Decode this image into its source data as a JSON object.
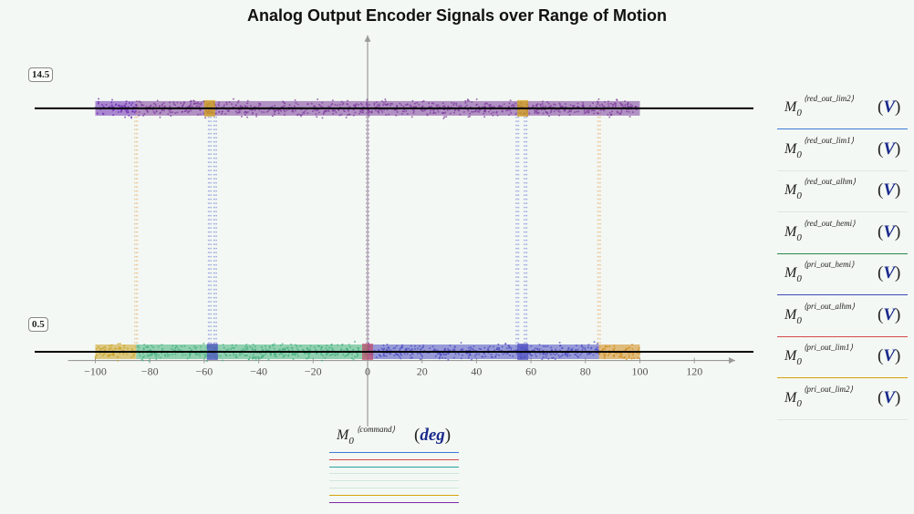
{
  "chart_data": {
    "type": "scatter",
    "title": "Analog Output Encoder Signals over Range of Motion",
    "xlim": [
      -110,
      135
    ],
    "ylim": [
      -3.8,
      18.7
    ],
    "xticks": [
      -100,
      -80,
      -60,
      -40,
      -20,
      0,
      20,
      40,
      60,
      80,
      100,
      120
    ],
    "tick_labels": [
      "−100",
      "−80",
      "−60",
      "−40",
      "−20",
      "0",
      "20",
      "40",
      "60",
      "80",
      "100",
      "120"
    ],
    "markers": [
      {
        "label": "14.5",
        "y": 14.5
      },
      {
        "label": "0.5",
        "y": 0.5
      }
    ],
    "x_axis_legend": {
      "name": "M",
      "sub": "0",
      "sup": "⟨command⟩",
      "unit": "deg"
    },
    "series": [
      {
        "name": "red_out_lim2",
        "color": "#e07a2c",
        "segments": [
          {
            "x": [
              -100,
              -85
            ],
            "y": 14.5
          },
          {
            "x": [
              -85,
              85
            ],
            "y": 14.5
          },
          {
            "x": [
              85,
              100
            ],
            "y": 0.5
          }
        ]
      },
      {
        "name": "red_out_lim1",
        "color": "#c9a01f",
        "segments": [
          {
            "x": [
              -100,
              -58
            ],
            "y": 14.5
          },
          {
            "x": [
              -58,
              58
            ],
            "y": 14.5
          },
          {
            "x": [
              58,
              100
            ],
            "y": 14.5
          }
        ]
      },
      {
        "name": "red_out_alhm",
        "color": "#2aa06a",
        "segments": [
          {
            "x": [
              -100,
              -85
            ],
            "y": 0.5
          },
          {
            "x": [
              -85,
              0
            ],
            "y": 0.5
          },
          {
            "x": [
              0,
              100
            ],
            "y": 14.5
          }
        ]
      },
      {
        "name": "red_out_hemi",
        "color": "#3a5fc8",
        "segments": [
          {
            "x": [
              -100,
              0
            ],
            "y": 14.5
          },
          {
            "x": [
              0,
              100
            ],
            "y": 0.5
          }
        ]
      },
      {
        "name": "pri_out_hemi",
        "color": "#5a3ad8",
        "segments": [
          {
            "x": [
              -100,
              0
            ],
            "y": 14.5
          },
          {
            "x": [
              0,
              100
            ],
            "y": 0.5
          }
        ]
      },
      {
        "name": "pri_out_alhm",
        "color": "#d24a5a",
        "segments": [
          {
            "x": [
              -100,
              0
            ],
            "y": 14.5
          },
          {
            "x": [
              0,
              100
            ],
            "y": 0.5
          }
        ]
      },
      {
        "name": "pri_out_lim1",
        "color": "#d4a20c",
        "segments": [
          {
            "x": [
              -100,
              -58
            ],
            "y": 14.5
          },
          {
            "x": [
              -58,
              -55
            ],
            "y": 14.5
          },
          {
            "x": [
              55,
              58
            ],
            "y": 14.5
          },
          {
            "x": [
              58,
              100
            ],
            "y": 14.5
          }
        ]
      },
      {
        "name": "pri_out_lim2",
        "color": "#7a2aa8",
        "segments": [
          {
            "x": [
              -100,
              -85
            ],
            "y": 14.5
          },
          {
            "x": [
              -85,
              85
            ],
            "y": 14.5
          },
          {
            "x": [
              85,
              100
            ],
            "y": 14.5
          }
        ]
      }
    ],
    "lower_band": [
      {
        "x": [
          -100,
          -85
        ],
        "color": "#c9a01f"
      },
      {
        "x": [
          -85,
          0
        ],
        "color": "#3fae7a"
      },
      {
        "x": [
          0,
          85
        ],
        "color": "#4a4cc0"
      },
      {
        "x": [
          85,
          100
        ],
        "color": "#d08a1a"
      }
    ],
    "upper_band": [
      {
        "x": [
          -100,
          -85
        ],
        "color": "#6a2ab0"
      },
      {
        "x": [
          -85,
          100
        ],
        "color": "#7a3a9a"
      }
    ],
    "transitions": [
      {
        "x": -85,
        "color": "#e0903a"
      },
      {
        "x": -58,
        "color": "#4a5ad0"
      },
      {
        "x": -56,
        "color": "#4a5ad0"
      },
      {
        "x": 0,
        "color": "#8a4aa0"
      },
      {
        "x": 55,
        "color": "#4a5ad0"
      },
      {
        "x": 58,
        "color": "#4a5ad0"
      },
      {
        "x": 85,
        "color": "#e0903a"
      }
    ],
    "grid": false
  },
  "legend": [
    {
      "name": "M",
      "sub": "0",
      "sup": "⟨red_out_lim2⟩",
      "unit": "V",
      "color": "#3a7ad8"
    },
    {
      "name": "M",
      "sub": "0",
      "sup": "⟨red_out_lim1⟩",
      "unit": "V",
      "color": "none"
    },
    {
      "name": "M",
      "sub": "0",
      "sup": "⟨red_out_alhm⟩",
      "unit": "V",
      "color": "none"
    },
    {
      "name": "M",
      "sub": "0",
      "sup": "⟨red_out_hemi⟩",
      "unit": "V",
      "color": "#2a8a4a"
    },
    {
      "name": "M",
      "sub": "0",
      "sup": "⟨pri_out_hemi⟩",
      "unit": "V",
      "color": "#3a4ab8"
    },
    {
      "name": "M",
      "sub": "0",
      "sup": "⟨pri_out_alhm⟩",
      "unit": "V",
      "color": "#d24a4a"
    },
    {
      "name": "M",
      "sub": "0",
      "sup": "⟨pri_out_lim1⟩",
      "unit": "V",
      "color": "#d4a20c"
    },
    {
      "name": "M",
      "sub": "0",
      "sup": "⟨pri_out_lim2⟩",
      "unit": "V",
      "color": "none"
    }
  ],
  "x_legend_lines": [
    "#3a7ad8",
    "#d24a4a",
    "#2aa0a0",
    "#cfe6dc",
    "#cfe6dc",
    "#cfe6dc",
    "#d4a20c",
    "#7a2aa8"
  ]
}
